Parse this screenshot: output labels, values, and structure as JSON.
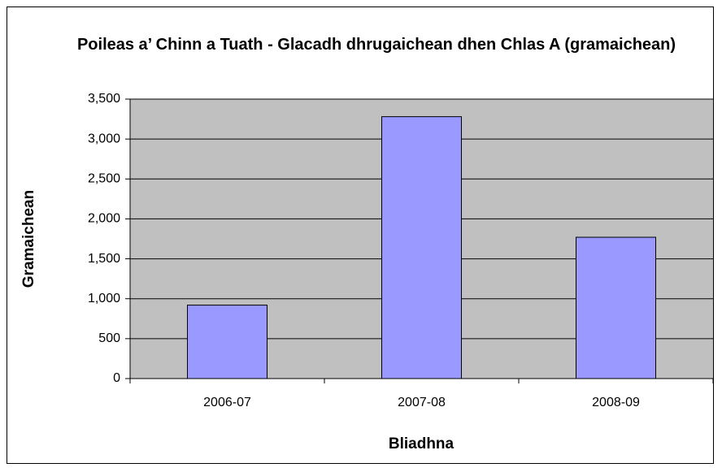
{
  "chart_data": {
    "type": "bar",
    "title": "Poileas a’ Chinn a Tuath - Glacadh dhrugaichean dhen Chlas A (gramaichean)",
    "x_label": "Bliadhna",
    "y_label": "Gramaichean",
    "categories": [
      "2006-07",
      "2007-08",
      "2008-09"
    ],
    "values": [
      920,
      3280,
      1770
    ],
    "color": "#9999ff",
    "ylim": [
      0,
      3500
    ],
    "yticks": [
      0,
      500,
      {
        "value": 1000,
        "label": "1,000"
      },
      {
        "value": 1500,
        "label": "1,500"
      },
      {
        "value": 2000,
        "label": "2,000"
      },
      {
        "value": 2500,
        "label": "2,500"
      },
      {
        "value": 3000,
        "label": "3,000"
      },
      {
        "value": 3500,
        "label": "3,500"
      }
    ],
    "grid": true
  }
}
